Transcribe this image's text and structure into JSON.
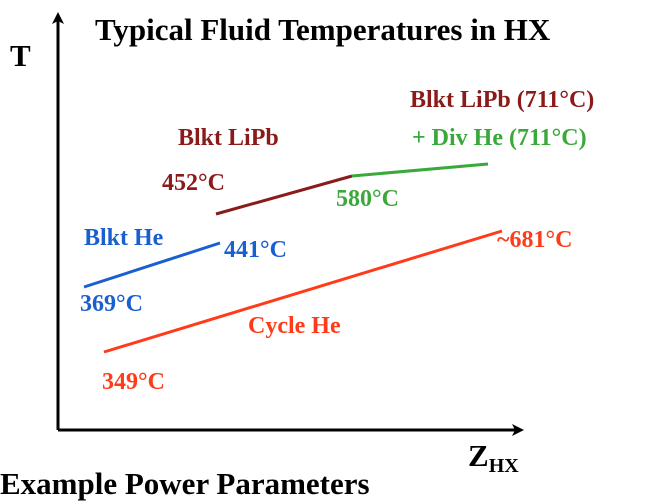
{
  "title": "Typical Fluid Temperatures in HX",
  "axes": {
    "y_label": "T",
    "x_label_main": "Z",
    "x_label_sub": "HX"
  },
  "footer_text": "Example Power Parameters",
  "streams": [
    {
      "id": "blkt-lipb",
      "name": "Blkt LiPb",
      "color": "#8b1a1a",
      "start_temp": "452°C",
      "end_temp": "580°C"
    },
    {
      "id": "blkt-lipb-div-he",
      "name_line1": "Blkt LiPb (711°C)",
      "name_line2": "+ Div He (711°C)",
      "color_line1": "#8b1a1a",
      "color_line2": "#3aa83a",
      "line_color": "#3aa83a"
    },
    {
      "id": "blkt-he",
      "name": "Blkt He",
      "color": "#1a5fd0",
      "start_temp": "369°C",
      "end_temp": "441°C"
    },
    {
      "id": "cycle-he",
      "name": "Cycle He",
      "color": "#ff3b1a",
      "start_temp": "349°C",
      "end_temp": "~681°C"
    }
  ]
}
